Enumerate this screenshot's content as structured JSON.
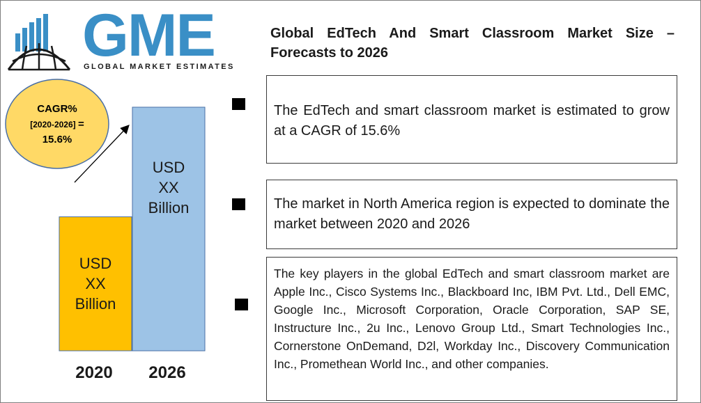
{
  "logo": {
    "letters": "GME",
    "tagline": "GLOBAL MARKET ESTIMATES"
  },
  "title": "Global EdTech And Smart Classroom  Market Size – Forecasts to 2026",
  "cagr": {
    "line1": "CAGR%",
    "period": "[2020-2026]",
    "equals": "=",
    "value": "15.6%"
  },
  "chart_data": {
    "type": "bar",
    "categories": [
      "2020",
      "2026"
    ],
    "values": [
      0.55,
      1.0
    ],
    "value_note": "relative heights only; actual values printed as USD XX Billion",
    "bar_labels": [
      [
        "USD",
        "XX",
        "Billion"
      ],
      [
        "USD",
        "XX",
        "Billion"
      ]
    ],
    "colors": [
      "#ffc000",
      "#9dc3e6"
    ],
    "title": "",
    "xlabel": "",
    "ylabel": ""
  },
  "bullets": [
    "The EdTech and smart classroom  market is estimated to grow at a CAGR of 15.6%",
    "The market in North America region is expected to dominate the market between 2020 and 2026",
    "The key players in the global EdTech and smart classroom market are Apple Inc., Cisco Systems Inc., Blackboard Inc, IBM Pvt. Ltd., Dell EMC, Google Inc., Microsoft Corporation, Oracle Corporation, SAP SE, Instructure Inc., 2u Inc., Lenovo Group Ltd., Smart Technologies Inc., Cornerstone OnDemand, D2l, Workday Inc., Discovery Communication Inc., Promethean World Inc., and other companies."
  ],
  "colors": {
    "logo_blue": "#3a8fc6",
    "cagr_fill": "#ffd966",
    "bar_2020": "#ffc000",
    "bar_2026": "#9dc3e6"
  }
}
